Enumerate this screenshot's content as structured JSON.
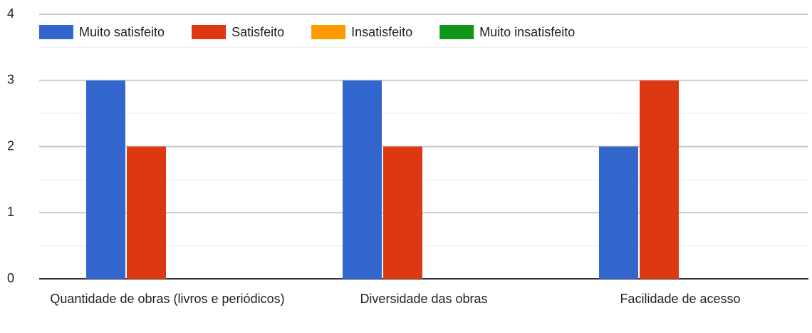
{
  "chart_data": {
    "type": "bar",
    "categories": [
      "Quantidade de obras (livros e periódicos)",
      "Diversidade das obras",
      "Facilidade de acesso"
    ],
    "series": [
      {
        "name": "Muito satisfeito",
        "color": "#3366cc",
        "values": [
          3,
          3,
          2
        ]
      },
      {
        "name": "Satisfeito",
        "color": "#dc3912",
        "values": [
          2,
          2,
          3
        ]
      },
      {
        "name": "Insatisfeito",
        "color": "#ff9900",
        "values": [
          0,
          0,
          0
        ]
      },
      {
        "name": "Muito insatisfeito",
        "color": "#109618",
        "values": [
          0,
          0,
          0
        ]
      }
    ],
    "ylim": [
      0,
      4
    ],
    "yticks": [
      0,
      1,
      2,
      3,
      4
    ],
    "minor_yticks": [
      0.5,
      1.5,
      2.5,
      3.5
    ],
    "grid": true,
    "legend": "top"
  }
}
